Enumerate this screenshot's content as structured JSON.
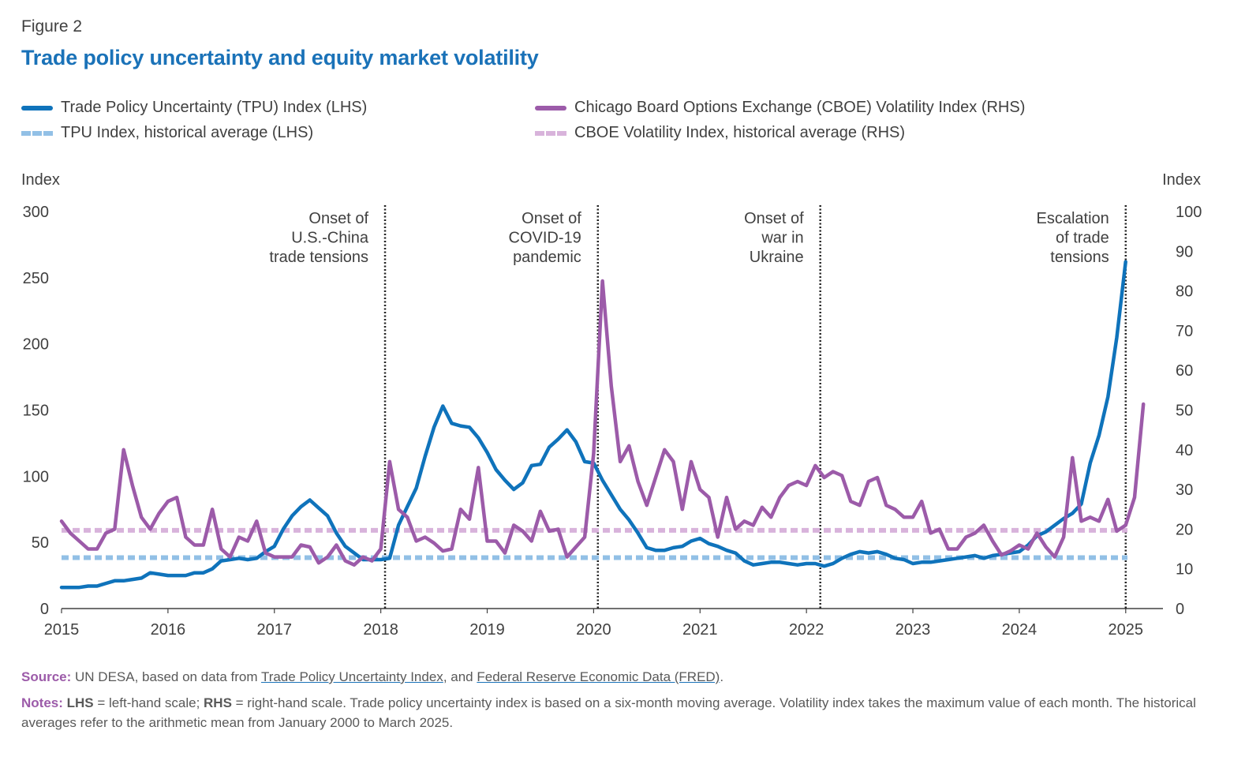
{
  "figure_label": "Figure 2",
  "title": "Trade policy uncertainty and equity market volatility",
  "legend": {
    "tpu": "Trade Policy Uncertainty (TPU) Index  (LHS)",
    "tpu_avg": "TPU Index, historical average (LHS)",
    "cboe": "Chicago Board Options Exchange (CBOE) Volatility Index (RHS)",
    "cboe_avg": "CBOE Volatility Index, historical average (RHS)"
  },
  "source": {
    "label": "Source:",
    "text_before": " UN DESA, based on data from ",
    "link1": "Trade Policy Uncertainty Index",
    "text_mid": ", and  ",
    "link2": "Federal Reserve Economic Data (FRED)",
    "text_after": "."
  },
  "notes": {
    "label": "Notes:",
    "lhs_key": "LHS",
    "lhs_text": " = left-hand scale; ",
    "rhs_key": "RHS",
    "rhs_text": " = right-hand scale. Trade policy uncertainty index is based on a six-month moving average. Volatility index takes the maximum value of each month. The historical averages refer to the arithmetic mean from January 2000 to March 2025."
  },
  "colors": {
    "tpu": "#0f73bb",
    "tpu_avg": "#92c0e6",
    "cboe": "#9c5ba9",
    "cboe_avg": "#d8b3db",
    "title": "#1a72b8"
  },
  "chart_data": {
    "type": "line",
    "y_left": {
      "label": "Index",
      "range": [
        0,
        300
      ],
      "ticks": [
        "0",
        "50",
        "100",
        "150",
        "200",
        "250",
        "300"
      ]
    },
    "y_right": {
      "label": "Index",
      "range": [
        0,
        100
      ],
      "ticks": [
        "0",
        "10",
        "20",
        "30",
        "40",
        "50",
        "60",
        "70",
        "80",
        "90",
        "100"
      ]
    },
    "x_range": [
      2015.0,
      2025.35
    ],
    "x_ticks": [
      "2015",
      "2016",
      "2017",
      "2018",
      "2019",
      "2020",
      "2021",
      "2022",
      "2023",
      "2024",
      "2025"
    ],
    "grid": false,
    "legend_position": "top",
    "annotations": [
      {
        "x": 2018.04,
        "lines": [
          "Onset of",
          "U.S.-China",
          "trade tensions"
        ]
      },
      {
        "x": 2020.04,
        "lines": [
          "Onset of",
          "COVID-19",
          "pandemic"
        ]
      },
      {
        "x": 2022.13,
        "lines": [
          "Onset of",
          "war in",
          "Ukraine"
        ]
      },
      {
        "x": 2025.0,
        "lines": [
          "Escalation",
          "of trade",
          "tensions"
        ]
      }
    ],
    "series": [
      {
        "name": "Trade Policy Uncertainty (TPU) Index  (LHS)",
        "axis": "left",
        "x_start": 2015.0,
        "step": 0.08333,
        "values": [
          16,
          16,
          16,
          17,
          17,
          19,
          21,
          21,
          22,
          23,
          27,
          26,
          25,
          25,
          25,
          27,
          27,
          30,
          36,
          37,
          38,
          37,
          38,
          43,
          47,
          60,
          70,
          77,
          82,
          76,
          70,
          57,
          47,
          42,
          37,
          37,
          37,
          38,
          63,
          77,
          91,
          115,
          137,
          153,
          140,
          138,
          137,
          129,
          118,
          105,
          97,
          90,
          95,
          108,
          109,
          122,
          128,
          135,
          126,
          111,
          110,
          97,
          86,
          75,
          67,
          57,
          46,
          44,
          44,
          46,
          47,
          51,
          53,
          49,
          47,
          44,
          42,
          36,
          33,
          34,
          35,
          35,
          34,
          33,
          34,
          34,
          32,
          34,
          38,
          41,
          43,
          42,
          43,
          41,
          38,
          37,
          34,
          35,
          35,
          36,
          37,
          38,
          39,
          40,
          38,
          40,
          41,
          42,
          43,
          48,
          55,
          58,
          63,
          68,
          72,
          79,
          110,
          131,
          160,
          205,
          262
        ]
      },
      {
        "name": "Chicago Board Options Exchange (CBOE) Volatility Index (RHS)",
        "axis": "right",
        "x_start": 2015.0,
        "step": 0.08333,
        "values": [
          22,
          19,
          17,
          15,
          15,
          19,
          20,
          40,
          31,
          23,
          20,
          24,
          27,
          28,
          18,
          16,
          16,
          25,
          15,
          13,
          18,
          17,
          22,
          14,
          13,
          13,
          13,
          16,
          15.5,
          11.5,
          13,
          16,
          12,
          11,
          13,
          12,
          15,
          37,
          25,
          23,
          17,
          18,
          16.5,
          14.5,
          15,
          25,
          22.5,
          35.5,
          17,
          17,
          14,
          21,
          19.5,
          17,
          24.5,
          19.5,
          20,
          13,
          15.5,
          18,
          39,
          82.5,
          56,
          37,
          41,
          32,
          26,
          33,
          40,
          37,
          25,
          37,
          30,
          28,
          18,
          28,
          20,
          22,
          21,
          25.5,
          23,
          28,
          31,
          32,
          31,
          36,
          33,
          34.5,
          33.5,
          27,
          26,
          32,
          33,
          26,
          25,
          23,
          23,
          27,
          19,
          20,
          15,
          15,
          18,
          19,
          21,
          17,
          13.5,
          14.5,
          16,
          15,
          19,
          15.5,
          13,
          18,
          38,
          22,
          23,
          22,
          27.5,
          19.5,
          21,
          28,
          51.5
        ]
      },
      {
        "name": "TPU Index, historical average (LHS)",
        "axis": "left",
        "style": "dashed",
        "values": [
          38.5
        ]
      },
      {
        "name": "CBOE Volatility Index, historical average (RHS)",
        "axis": "right",
        "style": "dashed",
        "values": [
          19.7
        ]
      }
    ]
  }
}
